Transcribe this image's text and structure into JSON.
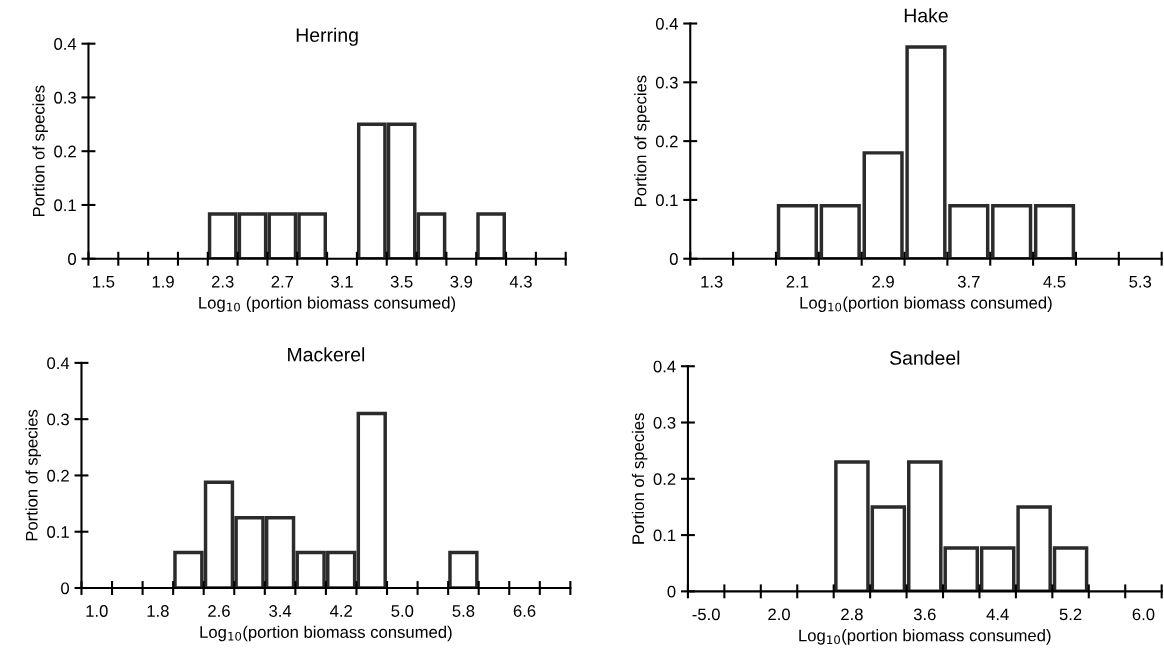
{
  "chart_data": [
    {
      "type": "bar",
      "title": "Herring",
      "xlabel": "Log$_{10}$ (portion biomass consumed)",
      "ylabel": "Portion of species",
      "categories": [
        "1.5",
        null,
        "1.9",
        null,
        "2.3",
        null,
        "2.7",
        null,
        "3.1",
        null,
        "3.5",
        null,
        "3.9",
        null,
        "4.3",
        null
      ],
      "values": [
        0,
        0,
        0,
        0,
        0.083,
        0.083,
        0.083,
        0.083,
        0,
        0.25,
        0.25,
        0.083,
        0,
        0.083,
        0,
        0
      ],
      "color": "#ffffff",
      "ylim": [
        0,
        0.4
      ],
      "yticks": [
        0,
        0.1,
        0.2,
        0.3,
        0.4
      ],
      "grid": false,
      "legend": false
    },
    {
      "type": "bar",
      "title": "Hake",
      "xlabel": "Log$_{10}$(portion biomass consumed)",
      "ylabel": "Portion of species",
      "categories": [
        "1.3",
        null,
        "2.1",
        null,
        "2.9",
        null,
        "3.7",
        null,
        "4.5",
        null,
        "5.3"
      ],
      "values": [
        0,
        0,
        0.09,
        0.09,
        0.18,
        0.36,
        0.09,
        0.09,
        0.09,
        0,
        0
      ],
      "color": "#ffffff",
      "ylim": [
        0,
        0.4
      ],
      "yticks": [
        0,
        0.1,
        0.2,
        0.3,
        0.4
      ],
      "grid": false,
      "legend": false
    },
    {
      "type": "bar",
      "title": "Mackerel",
      "xlabel": "Log$_{10}$(portion biomass consumed)",
      "ylabel": "Portion of species",
      "categories": [
        "1.0",
        null,
        "1.8",
        null,
        "2.6",
        null,
        "3.4",
        null,
        "4.2",
        null,
        "5.0",
        null,
        "5.8",
        null,
        "6.6",
        null
      ],
      "values": [
        0,
        0,
        0,
        0.063,
        0.188,
        0.125,
        0.125,
        0.063,
        0.063,
        0.31,
        0,
        0,
        0.063,
        0,
        0,
        0
      ],
      "color": "#ffffff",
      "ylim": [
        0,
        0.4
      ],
      "yticks": [
        0,
        0.1,
        0.2,
        0.3,
        0.4
      ],
      "grid": false,
      "legend": false
    },
    {
      "type": "bar",
      "title": "Sandeel",
      "xlabel": "Log$_{10}$(portion biomass consumed)",
      "ylabel": "Portion of species",
      "categories": [
        "-5.0",
        null,
        "2.0",
        null,
        "2.8",
        null,
        "3.6",
        null,
        "4.4",
        null,
        "5.2",
        null,
        "6.0"
      ],
      "values": [
        0,
        0,
        0,
        0,
        0.23,
        0.15,
        0.23,
        0.077,
        0.077,
        0.15,
        0.077,
        0,
        0
      ],
      "color": "#ffffff",
      "ylim": [
        0,
        0.4
      ],
      "yticks": [
        0,
        0.1,
        0.2,
        0.3,
        0.4
      ],
      "grid": false,
      "legend": false
    }
  ]
}
